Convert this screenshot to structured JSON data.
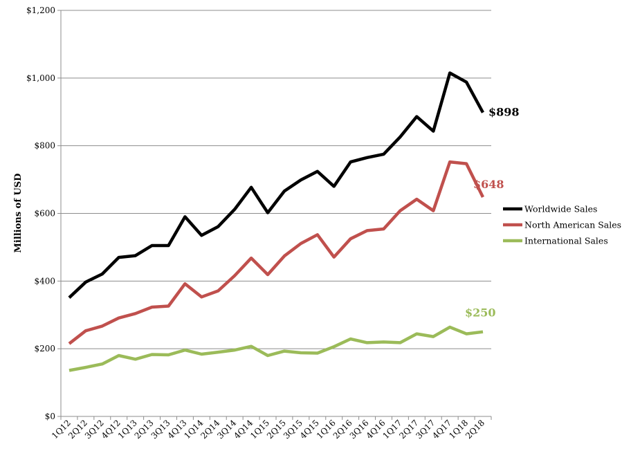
{
  "chart_data": {
    "type": "line",
    "title": "",
    "xlabel": "",
    "ylabel": "Millions of USD",
    "ylim": [
      0,
      1200
    ],
    "yticks": [
      0,
      200,
      400,
      600,
      800,
      1000,
      1200
    ],
    "ytick_labels": [
      "$0",
      "$200",
      "$400",
      "$600",
      "$800",
      "$1,000",
      "$1,200"
    ],
    "grid": "horizontal",
    "legend": "right",
    "categories": [
      "1Q12",
      "2Q12",
      "3Q12",
      "4Q12",
      "1Q13",
      "2Q13",
      "3Q13",
      "4Q13",
      "1Q14",
      "2Q14",
      "3Q14",
      "4Q14",
      "1Q15",
      "2Q15",
      "3Q15",
      "4Q15",
      "1Q16",
      "2Q16",
      "3Q16",
      "4Q16",
      "1Q17",
      "2Q17",
      "3Q17",
      "4Q17",
      "1Q18",
      "2Q18"
    ],
    "series": [
      {
        "name": "Worldwide Sales",
        "color": "#000000",
        "end_label": "$898",
        "values": [
          351,
          397,
          421,
          470,
          475,
          505,
          505,
          590,
          535,
          561,
          612,
          677,
          602,
          666,
          699,
          724,
          680,
          752,
          765,
          775,
          826,
          886,
          843,
          1015,
          988,
          898
        ]
      },
      {
        "name": "North American Sales",
        "color": "#c0504d",
        "end_label": "$648",
        "values": [
          215,
          253,
          267,
          291,
          304,
          323,
          326,
          392,
          353,
          371,
          416,
          468,
          419,
          474,
          511,
          537,
          471,
          525,
          549,
          554,
          608,
          642,
          608,
          752,
          747,
          648
        ]
      },
      {
        "name": "International Sales",
        "color": "#9bbb59",
        "end_label": "$250",
        "values": [
          136,
          145,
          155,
          180,
          169,
          183,
          182,
          196,
          184,
          190,
          196,
          207,
          180,
          193,
          188,
          187,
          206,
          229,
          218,
          220,
          218,
          244,
          236,
          264,
          244,
          250
        ]
      }
    ]
  }
}
